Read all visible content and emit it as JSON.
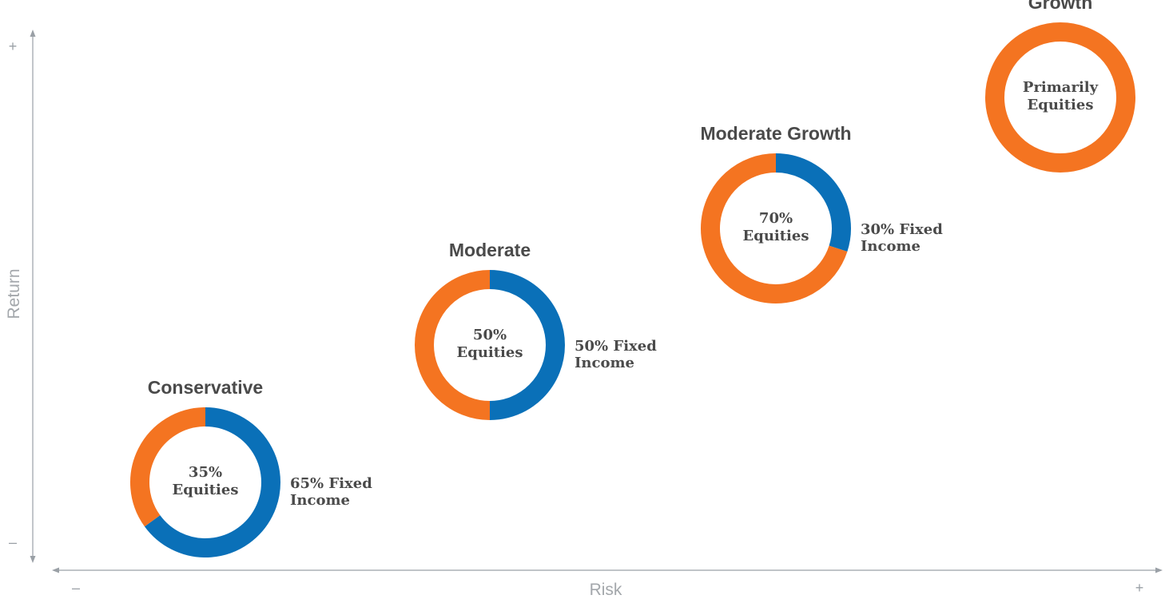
{
  "colors": {
    "fixed_income": "#0a70b8",
    "equities": "#f47421",
    "axis": "#9aa0a6"
  },
  "chart_data": {
    "type": "pie",
    "variant": "donut",
    "x_axis": {
      "label": "Risk",
      "min_sign": "–",
      "max_sign": "+"
    },
    "y_axis": {
      "label": "Return",
      "min_sign": "–",
      "max_sign": "+"
    },
    "portfolios": [
      {
        "name": "Conservative",
        "equities_pct": 35,
        "fixed_income_pct": 65,
        "center_label": [
          "35%",
          "Equities"
        ],
        "side_label": [
          "65% Fixed",
          "Income"
        ]
      },
      {
        "name": "Moderate",
        "equities_pct": 50,
        "fixed_income_pct": 50,
        "center_label": [
          "50%",
          "Equities"
        ],
        "side_label": [
          "50% Fixed",
          "Income"
        ]
      },
      {
        "name": "Moderate Growth",
        "equities_pct": 70,
        "fixed_income_pct": 30,
        "center_label": [
          "70%",
          "Equities"
        ],
        "side_label": [
          "30% Fixed",
          "Income"
        ]
      },
      {
        "name": "Growth",
        "equities_pct": 100,
        "fixed_income_pct": 0,
        "center_label": [
          "Primarily",
          "Equities"
        ],
        "side_label": []
      }
    ]
  }
}
